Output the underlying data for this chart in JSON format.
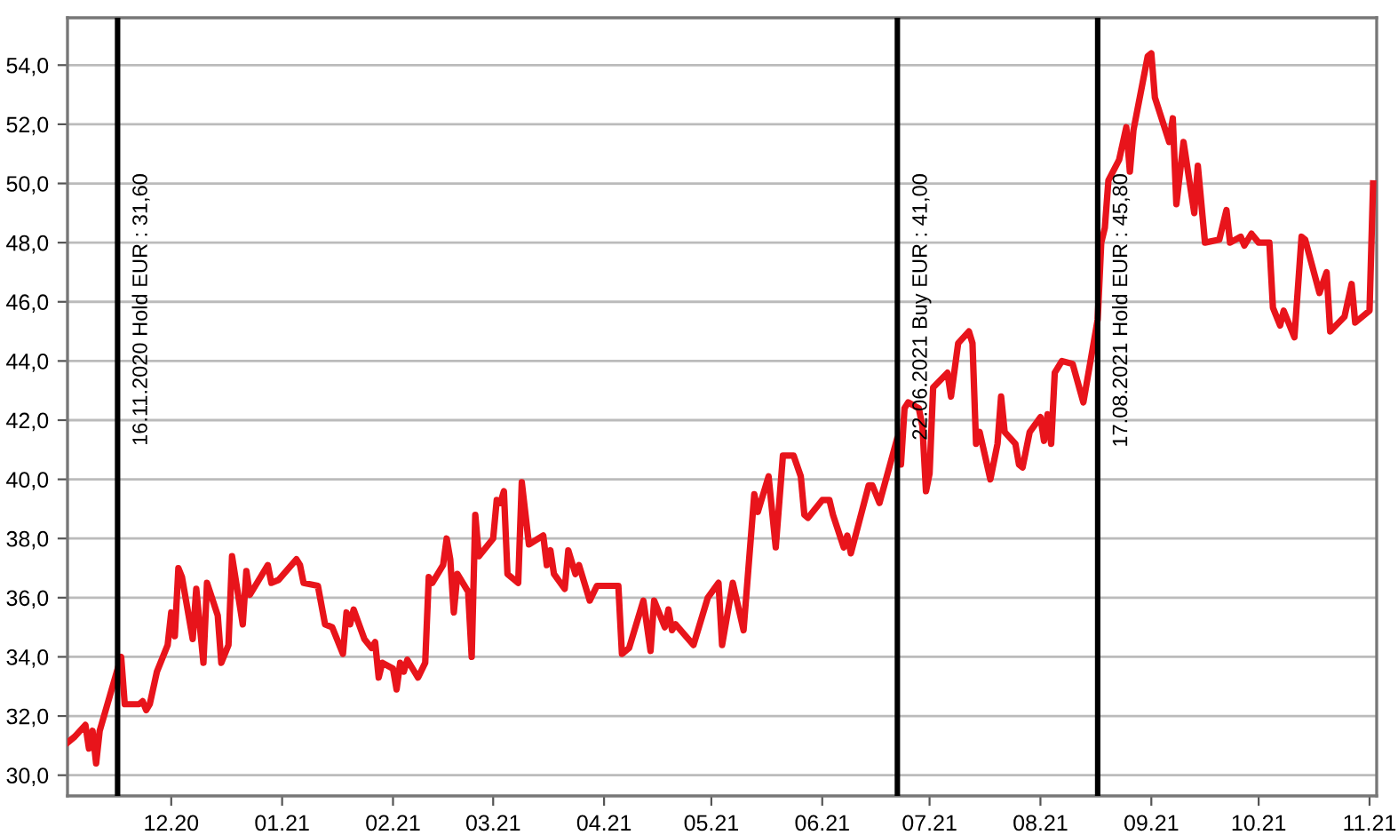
{
  "chart_data": {
    "type": "line",
    "xlim": [
      "2020-11-02",
      "2021-11-03"
    ],
    "ylim": [
      29.3,
      55.6
    ],
    "xticks": [
      {
        "value": "2020-12-01",
        "label": "12.20"
      },
      {
        "value": "2021-01-01",
        "label": "01.21"
      },
      {
        "value": "2021-02-01",
        "label": "02.21"
      },
      {
        "value": "2021-03-01",
        "label": "03.21"
      },
      {
        "value": "2021-04-01",
        "label": "04.21"
      },
      {
        "value": "2021-05-01",
        "label": "05.21"
      },
      {
        "value": "2021-06-01",
        "label": "06.21"
      },
      {
        "value": "2021-07-01",
        "label": "07.21"
      },
      {
        "value": "2021-08-01",
        "label": "08.21"
      },
      {
        "value": "2021-09-01",
        "label": "09.21"
      },
      {
        "value": "2021-10-01",
        "label": "10.21"
      },
      {
        "value": "2021-11-01",
        "label": "11.21"
      }
    ],
    "yticks": [
      {
        "value": 30,
        "label": "30,0"
      },
      {
        "value": 32,
        "label": "32,0"
      },
      {
        "value": 34,
        "label": "34,0"
      },
      {
        "value": 36,
        "label": "36,0"
      },
      {
        "value": 38,
        "label": "38,0"
      },
      {
        "value": 40,
        "label": "40,0"
      },
      {
        "value": 42,
        "label": "42,0"
      },
      {
        "value": 44,
        "label": "44,0"
      },
      {
        "value": 46,
        "label": "46,0"
      },
      {
        "value": 48,
        "label": "48,0"
      },
      {
        "value": 50,
        "label": "50,0"
      },
      {
        "value": 52,
        "label": "52,0"
      },
      {
        "value": 54,
        "label": "54,0"
      }
    ],
    "grid": "y",
    "line_style": "solid",
    "ref_lines": [
      {
        "axis": "x",
        "value": "2020-11-16",
        "label": "16.11.2020 Hold EUR : 31,60",
        "color": "#000000"
      },
      {
        "axis": "x",
        "value": "2021-06-22",
        "label": "22.06.2021 Buy EUR : 41,00",
        "color": "#000000"
      },
      {
        "axis": "x",
        "value": "2021-08-17",
        "label": "17.08.2021 Hold EUR : 45,80",
        "color": "#000000"
      }
    ],
    "series": [
      {
        "color": "#e8141b",
        "x": [
          "2020-11-02",
          "2020-11-04",
          "2020-11-07",
          "2020-11-08",
          "2020-11-09",
          "2020-11-10",
          "2020-11-11",
          "2020-11-17",
          "2020-11-18",
          "2020-11-22",
          "2020-11-23",
          "2020-11-24",
          "2020-11-25",
          "2020-11-27",
          "2020-11-30",
          "2020-12-01",
          "2020-12-02",
          "2020-12-03",
          "2020-12-04",
          "2020-12-07",
          "2020-12-08",
          "2020-12-10",
          "2020-12-11",
          "2020-12-14",
          "2020-12-15",
          "2020-12-17",
          "2020-12-18",
          "2020-12-21",
          "2020-12-22",
          "2020-12-23",
          "2020-12-28",
          "2020-12-29",
          "2020-12-31",
          "2021-01-05",
          "2021-01-06",
          "2021-01-07",
          "2021-01-11",
          "2021-01-13",
          "2021-01-15",
          "2021-01-18",
          "2021-01-19",
          "2021-01-20",
          "2021-01-21",
          "2021-01-24",
          "2021-01-26",
          "2021-01-27",
          "2021-01-28",
          "2021-01-29",
          "2021-02-01",
          "2021-02-02",
          "2021-02-03",
          "2021-02-04",
          "2021-02-05",
          "2021-02-08",
          "2021-02-10",
          "2021-02-11",
          "2021-02-12",
          "2021-02-15",
          "2021-02-16",
          "2021-02-17",
          "2021-02-18",
          "2021-02-19",
          "2021-02-22",
          "2021-02-23",
          "2021-02-24",
          "2021-02-25",
          "2021-03-01",
          "2021-03-02",
          "2021-03-03",
          "2021-03-04",
          "2021-03-05",
          "2021-03-08",
          "2021-03-09",
          "2021-03-11",
          "2021-03-15",
          "2021-03-16",
          "2021-03-17",
          "2021-03-18",
          "2021-03-21",
          "2021-03-22",
          "2021-03-24",
          "2021-03-25",
          "2021-03-28",
          "2021-03-30",
          "2021-04-05",
          "2021-04-06",
          "2021-04-08",
          "2021-04-12",
          "2021-04-14",
          "2021-04-15",
          "2021-04-18",
          "2021-04-19",
          "2021-04-20",
          "2021-04-21",
          "2021-04-26",
          "2021-04-30",
          "2021-05-03",
          "2021-05-04",
          "2021-05-07",
          "2021-05-10",
          "2021-05-13",
          "2021-05-14",
          "2021-05-17",
          "2021-05-19",
          "2021-05-21",
          "2021-05-24",
          "2021-05-26",
          "2021-05-27",
          "2021-05-28",
          "2021-06-01",
          "2021-06-03",
          "2021-06-04",
          "2021-06-07",
          "2021-06-08",
          "2021-06-09",
          "2021-06-14",
          "2021-06-15",
          "2021-06-17",
          "2021-06-22",
          "2021-06-23",
          "2021-06-24",
          "2021-06-25",
          "2021-06-28",
          "2021-06-29",
          "2021-06-30",
          "2021-07-01",
          "2021-07-02",
          "2021-07-06",
          "2021-07-07",
          "2021-07-09",
          "2021-07-12",
          "2021-07-13",
          "2021-07-14",
          "2021-07-15",
          "2021-07-18",
          "2021-07-20",
          "2021-07-21",
          "2021-07-22",
          "2021-07-25",
          "2021-07-26",
          "2021-07-27",
          "2021-07-29",
          "2021-08-01",
          "2021-08-02",
          "2021-08-03",
          "2021-08-04",
          "2021-08-05",
          "2021-08-07",
          "2021-08-10",
          "2021-08-13",
          "2021-08-17",
          "2021-08-18",
          "2021-08-19",
          "2021-08-20",
          "2021-08-23",
          "2021-08-25",
          "2021-08-26",
          "2021-08-27",
          "2021-08-31",
          "2021-09-01",
          "2021-09-02",
          "2021-09-06",
          "2021-09-07",
          "2021-09-08",
          "2021-09-10",
          "2021-09-13",
          "2021-09-14",
          "2021-09-16",
          "2021-09-20",
          "2021-09-22",
          "2021-09-23",
          "2021-09-26",
          "2021-09-27",
          "2021-09-29",
          "2021-10-01",
          "2021-10-04",
          "2021-10-05",
          "2021-10-07",
          "2021-10-08",
          "2021-10-11",
          "2021-10-13",
          "2021-10-14",
          "2021-10-18",
          "2021-10-20",
          "2021-10-21",
          "2021-10-25",
          "2021-10-27",
          "2021-10-28",
          "2021-11-01",
          "2021-11-02"
        ],
        "values": [
          31.1,
          31.3,
          31.7,
          30.9,
          31.5,
          30.4,
          31.5,
          34.0,
          32.4,
          32.4,
          32.5,
          32.2,
          32.4,
          33.5,
          34.4,
          35.5,
          34.7,
          37.0,
          36.7,
          34.6,
          36.3,
          33.8,
          36.5,
          35.4,
          33.8,
          34.4,
          37.4,
          35.1,
          36.9,
          36.1,
          37.1,
          36.5,
          36.6,
          37.3,
          37.1,
          36.5,
          36.4,
          35.1,
          35.0,
          34.1,
          35.5,
          35.1,
          35.6,
          34.6,
          34.3,
          34.5,
          33.3,
          33.8,
          33.6,
          32.9,
          33.8,
          33.5,
          33.9,
          33.3,
          33.8,
          36.7,
          36.5,
          37.1,
          38.0,
          37.3,
          35.5,
          36.8,
          36.2,
          34.0,
          38.8,
          37.4,
          38.0,
          39.3,
          39.2,
          39.6,
          36.8,
          36.5,
          39.9,
          37.8,
          38.1,
          37.1,
          37.6,
          36.8,
          36.3,
          37.6,
          36.8,
          37.1,
          35.9,
          36.4,
          36.4,
          34.1,
          34.3,
          35.9,
          34.2,
          35.9,
          35.0,
          35.6,
          34.9,
          35.1,
          34.4,
          36.0,
          36.5,
          34.4,
          36.5,
          34.9,
          39.5,
          38.9,
          40.1,
          37.7,
          40.8,
          40.8,
          40.1,
          38.8,
          38.7,
          39.3,
          39.3,
          38.8,
          37.7,
          38.1,
          37.5,
          39.8,
          39.8,
          39.2,
          41.4,
          40.5,
          42.4,
          42.6,
          42.4,
          41.8,
          39.6,
          40.2,
          43.1,
          43.6,
          42.8,
          44.6,
          45.0,
          44.6,
          41.2,
          41.6,
          40.0,
          41.2,
          42.8,
          41.6,
          41.2,
          40.5,
          40.4,
          41.6,
          42.1,
          41.3,
          42.2,
          41.2,
          43.6,
          44.0,
          43.9,
          42.6,
          45.4,
          48.0,
          48.5,
          50.1,
          50.8,
          51.9,
          50.4,
          51.8,
          54.3,
          54.4,
          52.9,
          51.4,
          52.2,
          49.3,
          51.4,
          49.0,
          50.6,
          48.0,
          48.1,
          49.1,
          48.0,
          48.2,
          47.9,
          48.3,
          48.0,
          48.0,
          45.8,
          45.2,
          45.7,
          44.8,
          48.2,
          48.1,
          46.3,
          47.0,
          45.0,
          45.5,
          46.6,
          45.3,
          45.7,
          50.0
        ]
      }
    ]
  }
}
